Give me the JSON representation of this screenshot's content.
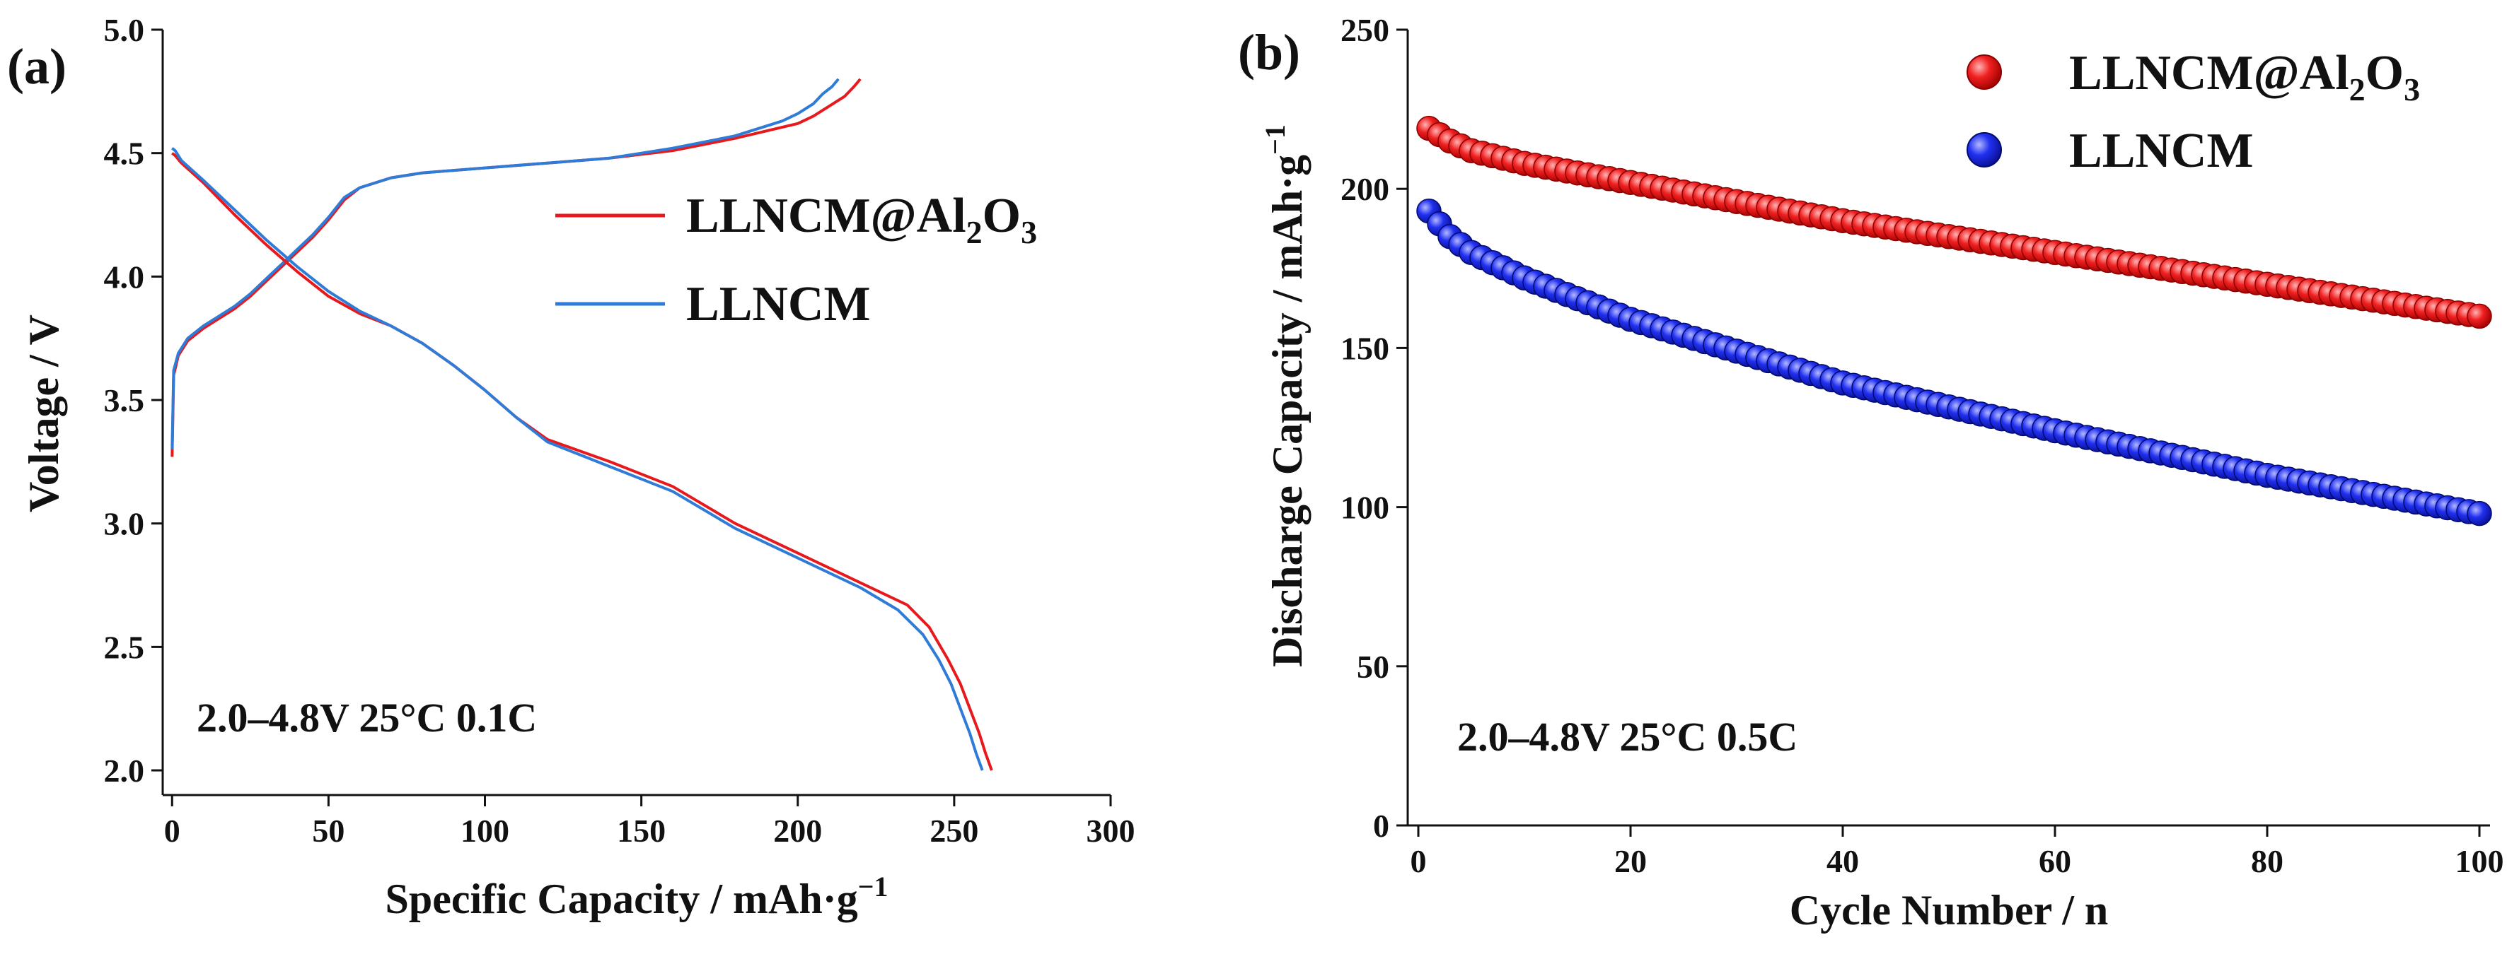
{
  "chart_data": [
    {
      "type": "line",
      "panel_label": "(a)",
      "xlabel": "Specific Capacity / mAh·g",
      "xlabel_sup": "−1",
      "ylabel": "Voltage / V",
      "xlim": [
        -3,
        300
      ],
      "ylim": [
        1.9,
        5.0
      ],
      "xticks": [
        0,
        50,
        100,
        150,
        200,
        250,
        300
      ],
      "yticks": [
        2.0,
        2.5,
        3.0,
        3.5,
        4.0,
        4.5,
        5.0
      ],
      "xtick_labels": [
        "0",
        "50",
        "100",
        "150",
        "200",
        "250",
        "300"
      ],
      "ytick_labels": [
        "2.0",
        "2.5",
        "3.0",
        "3.5",
        "4.0",
        "4.5",
        "5.0"
      ],
      "annotation": "2.0–4.8V  25°C  0.1C",
      "legend": [
        {
          "name_main": "LLNCM@Al",
          "sub1": "2",
          "name_mid": "O",
          "sub2": "3",
          "color": "#e8191c"
        },
        {
          "name_main": "LLNCM",
          "color": "#2f7bd8"
        }
      ],
      "series": [
        {
          "name": "LLNCM@Al2O3 charge",
          "color": "#e8191c",
          "x": [
            0,
            0.5,
            2,
            5,
            10,
            15,
            20,
            25,
            30,
            35,
            40,
            45,
            50,
            55,
            60,
            65,
            70,
            80,
            90,
            100,
            120,
            140,
            160,
            180,
            200,
            205,
            210,
            215,
            218,
            220
          ],
          "y": [
            3.27,
            3.6,
            3.68,
            3.74,
            3.79,
            3.83,
            3.87,
            3.92,
            3.98,
            4.04,
            4.1,
            4.16,
            4.23,
            4.31,
            4.36,
            4.38,
            4.4,
            4.42,
            4.43,
            4.44,
            4.46,
            4.48,
            4.51,
            4.56,
            4.62,
            4.65,
            4.69,
            4.73,
            4.77,
            4.8
          ]
        },
        {
          "name": "LLNCM charge",
          "color": "#2f7bd8",
          "x": [
            0,
            0.5,
            2,
            5,
            10,
            15,
            20,
            25,
            30,
            35,
            40,
            45,
            50,
            55,
            60,
            65,
            70,
            80,
            90,
            100,
            120,
            140,
            160,
            180,
            195,
            200,
            205,
            208,
            211,
            213
          ],
          "y": [
            3.3,
            3.62,
            3.69,
            3.75,
            3.8,
            3.84,
            3.88,
            3.93,
            3.99,
            4.05,
            4.11,
            4.17,
            4.24,
            4.32,
            4.36,
            4.38,
            4.4,
            4.42,
            4.43,
            4.44,
            4.46,
            4.48,
            4.52,
            4.57,
            4.63,
            4.66,
            4.7,
            4.74,
            4.77,
            4.8
          ]
        },
        {
          "name": "LLNCM@Al2O3 discharge",
          "color": "#e8191c",
          "x": [
            0,
            1,
            3,
            10,
            20,
            30,
            40,
            50,
            60,
            70,
            80,
            90,
            100,
            110,
            120,
            140,
            160,
            180,
            200,
            220,
            235,
            242,
            248,
            252,
            255,
            258,
            260,
            262
          ],
          "y": [
            4.5,
            4.49,
            4.46,
            4.38,
            4.25,
            4.13,
            4.02,
            3.92,
            3.85,
            3.8,
            3.73,
            3.64,
            3.54,
            3.43,
            3.34,
            3.25,
            3.15,
            3.0,
            2.88,
            2.76,
            2.67,
            2.58,
            2.45,
            2.35,
            2.25,
            2.15,
            2.07,
            2.0
          ]
        },
        {
          "name": "LLNCM discharge",
          "color": "#2f7bd8",
          "x": [
            0,
            1,
            3,
            10,
            20,
            30,
            40,
            50,
            60,
            70,
            80,
            90,
            100,
            110,
            120,
            140,
            160,
            180,
            200,
            220,
            232,
            240,
            245,
            249,
            252,
            255,
            257,
            259
          ],
          "y": [
            4.52,
            4.51,
            4.47,
            4.39,
            4.27,
            4.15,
            4.04,
            3.94,
            3.86,
            3.8,
            3.73,
            3.64,
            3.54,
            3.43,
            3.33,
            3.23,
            3.13,
            2.98,
            2.86,
            2.74,
            2.65,
            2.55,
            2.45,
            2.35,
            2.25,
            2.15,
            2.07,
            2.0
          ]
        }
      ]
    },
    {
      "type": "scatter",
      "panel_label": "(b)",
      "xlabel": "Cycle Number / n",
      "ylabel": "Discharge Capacity / mAh·g",
      "ylabel_sup": "−1",
      "xlim": [
        -1,
        101
      ],
      "ylim": [
        0,
        250
      ],
      "xticks": [
        0,
        20,
        40,
        60,
        80,
        100
      ],
      "yticks": [
        0,
        50,
        100,
        150,
        200,
        250
      ],
      "xtick_labels": [
        "0",
        "20",
        "40",
        "60",
        "80",
        "100"
      ],
      "ytick_labels": [
        "0",
        "50",
        "100",
        "150",
        "200",
        "250"
      ],
      "annotation": "2.0–4.8V  25°C  0.5C",
      "legend": [
        {
          "name_main": "LLNCM@Al",
          "sub1": "2",
          "name_mid": "O",
          "sub2": "3",
          "color": "#e8191c"
        },
        {
          "name_main": "LLNCM",
          "color": "#1f2fe0"
        }
      ],
      "series": [
        {
          "name": "LLNCM@Al2O3",
          "color": "#e8191c",
          "cycles": [
            1,
            100
          ],
          "anchors_x": [
            1,
            2,
            3,
            5,
            10,
            20,
            40,
            60,
            80,
            100
          ],
          "anchors_y": [
            219,
            217,
            215,
            212,
            208,
            202,
            190,
            180,
            170,
            160
          ]
        },
        {
          "name": "LLNCM",
          "color": "#1f2fe0",
          "cycles": [
            1,
            100
          ],
          "anchors_x": [
            1,
            2,
            3,
            5,
            10,
            20,
            40,
            60,
            80,
            100
          ],
          "anchors_y": [
            193,
            189,
            185,
            180,
            172,
            159,
            139,
            124,
            110,
            98
          ]
        }
      ]
    }
  ]
}
